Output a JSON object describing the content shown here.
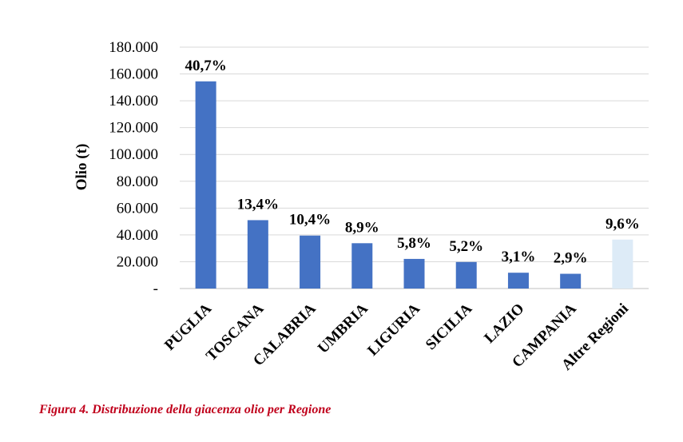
{
  "caption": "Figura 4. Distribuzione della giacenza olio per Regione",
  "colors": {
    "bar": "#4472c4",
    "bar_other": "#ddebf7",
    "grid": "#d9d9d9",
    "axis": "#bfbfbf"
  },
  "chart_data": {
    "type": "bar",
    "ylabel": "Olio (t)",
    "ylim": [
      0,
      180000
    ],
    "yticks": [
      0,
      20000,
      40000,
      60000,
      80000,
      100000,
      120000,
      140000,
      160000,
      180000
    ],
    "ytick_labels": [
      "-",
      "20.000",
      "40.000",
      "60.000",
      "80.000",
      "100.000",
      "120.000",
      "140.000",
      "160.000",
      "180.000"
    ],
    "grid": true,
    "categories": [
      "PUGLIA",
      "TOSCANA",
      "CALABRIA",
      "UMBRIA",
      "LIGURIA",
      "SICILIA",
      "LAZIO",
      "CAMPANIA",
      "Altre Regioni"
    ],
    "values": [
      154500,
      51000,
      39500,
      33800,
      22100,
      19800,
      11800,
      11000,
      36500
    ],
    "data_labels": [
      "40,7%",
      "13,4%",
      "10,4%",
      "8,9%",
      "5,8%",
      "5,2%",
      "3,1%",
      "2,9%",
      "9,6%"
    ]
  }
}
